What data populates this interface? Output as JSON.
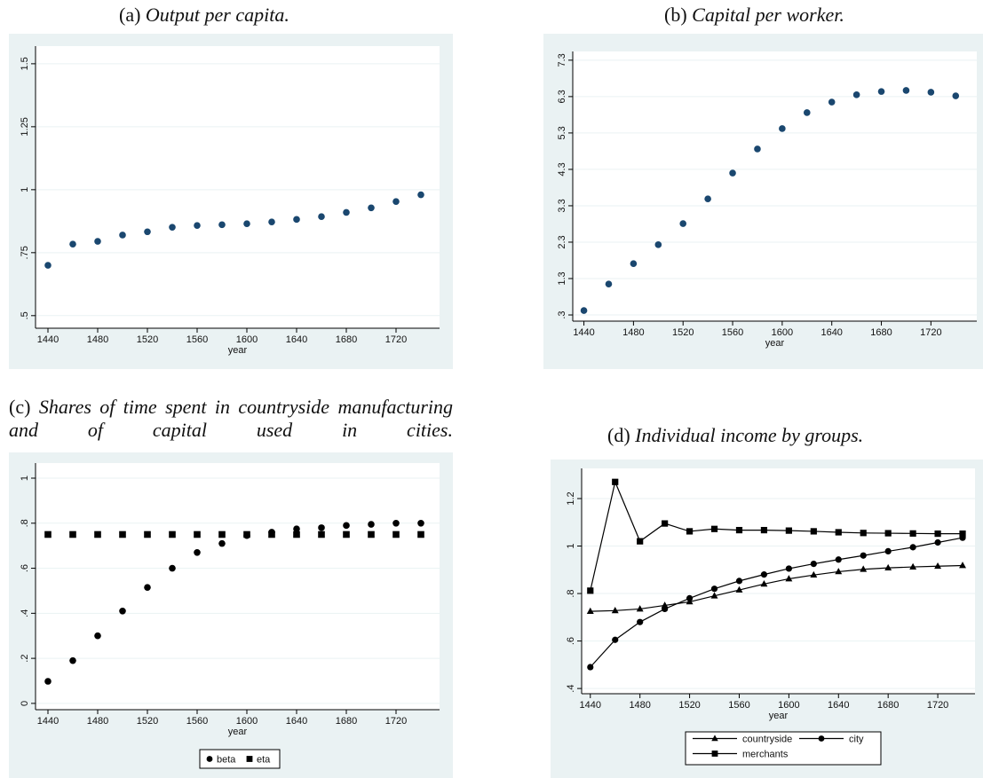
{
  "chart_data": [
    {
      "type": "scatter",
      "label": "(a)",
      "title": "Output per capita.",
      "xlabel": "year",
      "x": [
        1440,
        1460,
        1480,
        1500,
        1520,
        1540,
        1560,
        1580,
        1600,
        1620,
        1640,
        1660,
        1680,
        1700,
        1720,
        1740
      ],
      "series": [
        {
          "color": "#1a476f",
          "marker": "circle",
          "values": [
            0.7,
            0.784,
            0.795,
            0.82,
            0.833,
            0.851,
            0.858,
            0.861,
            0.865,
            0.872,
            0.882,
            0.893,
            0.91,
            0.928,
            0.953,
            0.98
          ]
        }
      ],
      "xlim": [
        1430,
        1755
      ],
      "xticks": [
        1440,
        1480,
        1520,
        1560,
        1600,
        1640,
        1680,
        1720
      ],
      "ylim": [
        0.45,
        1.57
      ],
      "yticks": [
        {
          "value": 0.5,
          "label": ".5"
        },
        {
          "value": 0.75,
          "label": ".75"
        },
        1,
        {
          "value": 1.25,
          "label": "1.25"
        },
        {
          "value": 1.5,
          "label": "1.5"
        }
      ],
      "grid": true
    },
    {
      "type": "scatter",
      "label": "(b)",
      "title": "Capital per worker.",
      "xlabel": "year",
      "x": [
        1440,
        1460,
        1480,
        1500,
        1520,
        1540,
        1560,
        1580,
        1600,
        1620,
        1640,
        1660,
        1680,
        1700,
        1720,
        1740
      ],
      "series": [
        {
          "color": "#1a476f",
          "marker": "circle",
          "values": [
            0.42,
            1.15,
            1.71,
            2.23,
            2.81,
            3.49,
            4.2,
            4.86,
            5.42,
            5.86,
            6.15,
            6.35,
            6.44,
            6.47,
            6.42,
            6.32
          ]
        }
      ],
      "xlim": [
        1431,
        1757
      ],
      "xticks": [
        1440,
        1480,
        1520,
        1560,
        1600,
        1640,
        1680,
        1720
      ],
      "ylim": [
        0.13,
        7.54
      ],
      "yticks": [
        {
          "value": 0.3,
          "label": ".3"
        },
        1.3,
        2.3,
        3.3,
        4.3,
        5.3,
        6.3,
        7.3
      ],
      "grid": true
    },
    {
      "type": "scatter",
      "label": "(c)",
      "title": "Shares of time spent in countryside manufacturing and of capital used in cities.",
      "xlabel": "year",
      "x": [
        1440,
        1460,
        1480,
        1500,
        1520,
        1540,
        1560,
        1580,
        1600,
        1620,
        1640,
        1660,
        1680,
        1700,
        1720,
        1740
      ],
      "series": [
        {
          "name": "beta",
          "color": "#000000",
          "marker": "circle",
          "values": [
            0.098,
            0.19,
            0.3,
            0.41,
            0.515,
            0.6,
            0.67,
            0.71,
            0.745,
            0.76,
            0.775,
            0.78,
            0.79,
            0.795,
            0.8,
            0.8
          ]
        },
        {
          "name": "eta",
          "color": "#000000",
          "marker": "square",
          "values": [
            0.75,
            0.75,
            0.75,
            0.75,
            0.75,
            0.75,
            0.75,
            0.75,
            0.75,
            0.75,
            0.75,
            0.75,
            0.75,
            0.75,
            0.75,
            0.75
          ]
        }
      ],
      "xlim": [
        1430,
        1755
      ],
      "xticks": [
        1440,
        1480,
        1520,
        1560,
        1600,
        1640,
        1680,
        1720
      ],
      "ylim": [
        -0.028,
        1.067
      ],
      "yticks": [
        0,
        {
          "value": 0.2,
          "label": ".2"
        },
        {
          "value": 0.4,
          "label": ".4"
        },
        {
          "value": 0.6,
          "label": ".6"
        },
        {
          "value": 0.8,
          "label": ".8"
        },
        1
      ],
      "grid": true,
      "legend": "bottom"
    },
    {
      "type": "line",
      "label": "(d)",
      "title": "Individual income by groups.",
      "xlabel": "year",
      "x": [
        1440,
        1460,
        1480,
        1500,
        1520,
        1540,
        1560,
        1580,
        1600,
        1620,
        1640,
        1660,
        1680,
        1700,
        1720,
        1740
      ],
      "series": [
        {
          "name": "countryside",
          "color": "#000000",
          "marker": "triangle",
          "values": [
            0.725,
            0.728,
            0.735,
            0.75,
            0.765,
            0.79,
            0.815,
            0.84,
            0.862,
            0.878,
            0.892,
            0.902,
            0.908,
            0.912,
            0.915,
            0.918
          ]
        },
        {
          "name": "city",
          "color": "#000000",
          "marker": "circle",
          "values": [
            0.49,
            0.605,
            0.68,
            0.735,
            0.78,
            0.82,
            0.853,
            0.88,
            0.905,
            0.925,
            0.943,
            0.96,
            0.978,
            0.995,
            1.015,
            1.035
          ]
        },
        {
          "name": "merchants",
          "color": "#000000",
          "marker": "square",
          "values": [
            0.812,
            1.27,
            1.02,
            1.095,
            1.062,
            1.072,
            1.067,
            1.067,
            1.065,
            1.062,
            1.058,
            1.055,
            1.054,
            1.053,
            1.052,
            1.052
          ]
        }
      ],
      "xlim": [
        1433,
        1750
      ],
      "xticks": [
        1440,
        1480,
        1520,
        1560,
        1600,
        1640,
        1680,
        1720
      ],
      "ylim": [
        0.378,
        1.327
      ],
      "yticks": [
        {
          "value": 0.4,
          "label": ".4"
        },
        {
          "value": 0.6,
          "label": ".6"
        },
        {
          "value": 0.8,
          "label": ".8"
        },
        1,
        {
          "value": 1.2,
          "label": "1.2"
        }
      ],
      "grid": true,
      "legend": "bottom"
    }
  ]
}
